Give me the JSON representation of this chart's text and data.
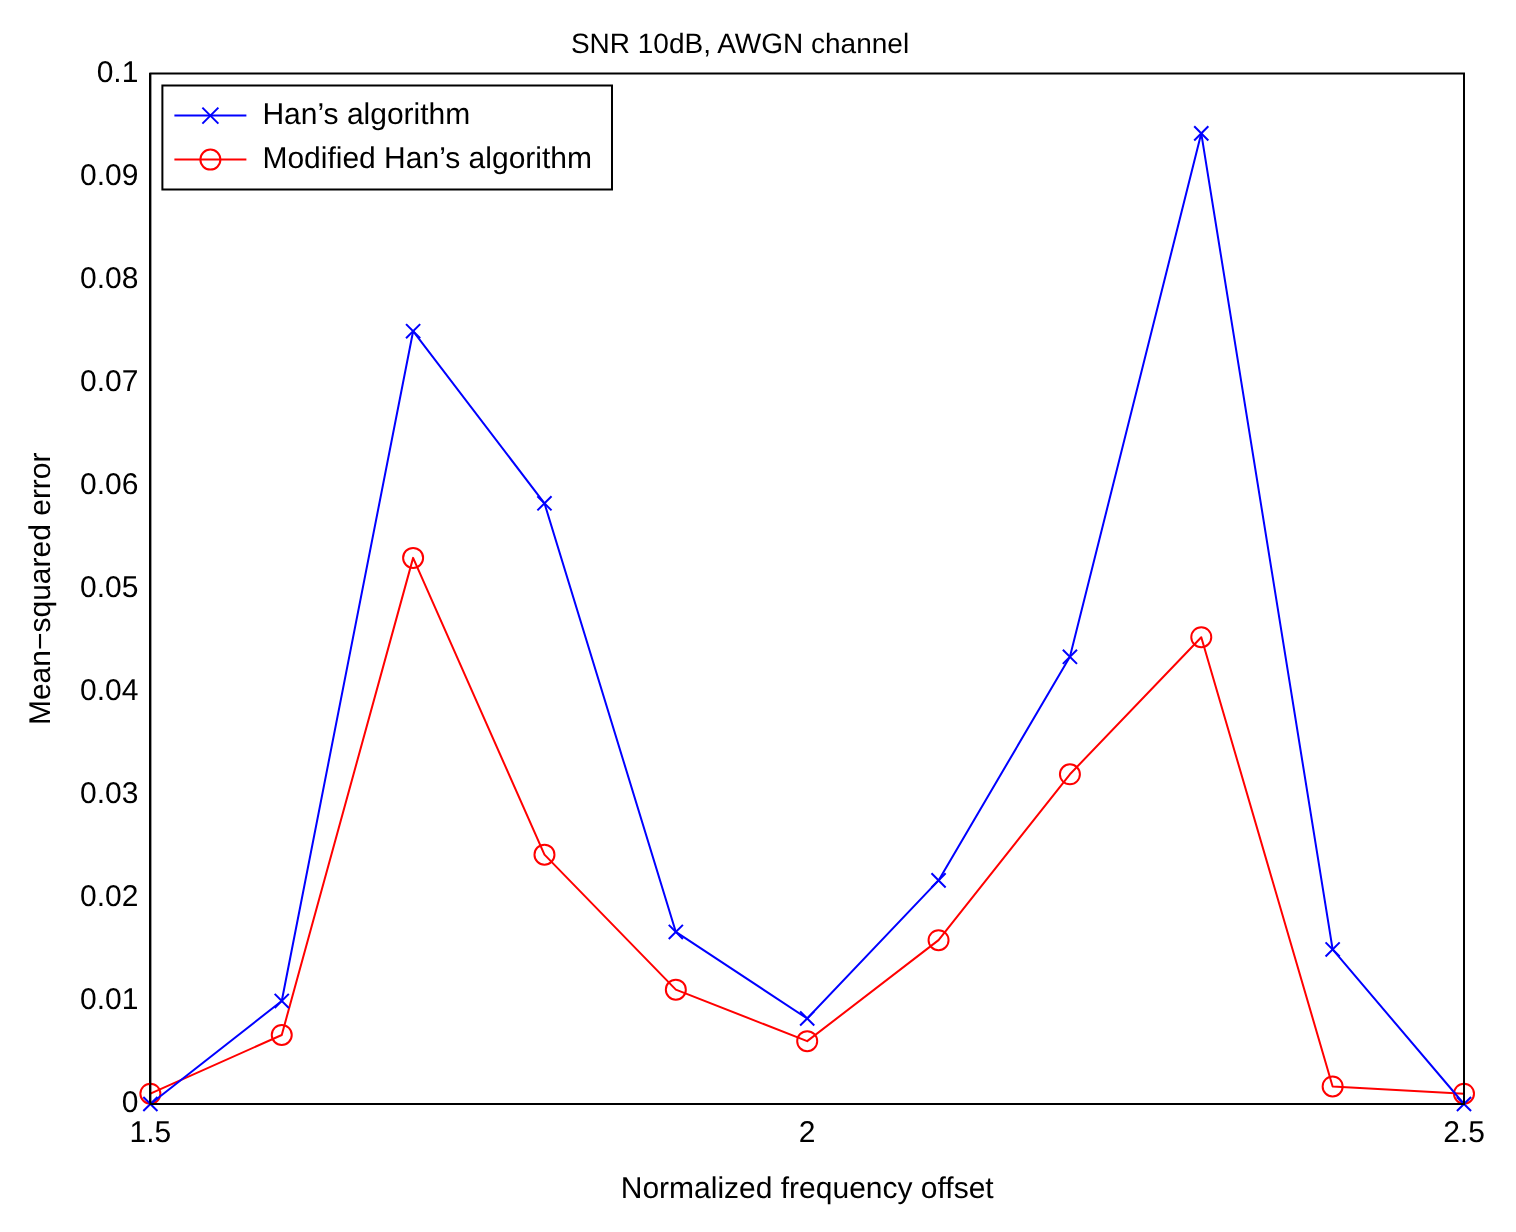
{
  "chart_data": {
    "type": "line",
    "title": "SNR 10dB, AWGN channel",
    "xlabel": "Normalized frequency offset",
    "ylabel": "Mean−squared error",
    "x": [
      1.5,
      1.6,
      1.7,
      1.8,
      1.9,
      2.0,
      2.1,
      2.2,
      2.3,
      2.4,
      2.5
    ],
    "series": [
      {
        "name": "Han’s algorithm",
        "color": "#0000ff",
        "marker": "cross",
        "values": [
          0,
          0.01,
          0.075,
          0.0583,
          0.0167,
          0.0083,
          0.0217,
          0.0434,
          0.0942,
          0.015,
          0
        ]
      },
      {
        "name": "Modified Han’s algorithm",
        "color": "#ff0000",
        "marker": "circle",
        "values": [
          0.001,
          0.0067,
          0.053,
          0.0242,
          0.0111,
          0.0061,
          0.0159,
          0.032,
          0.0453,
          0.0017,
          0.001
        ]
      }
    ],
    "xlim": [
      1.5,
      2.5
    ],
    "xticks": [
      1.5,
      2,
      2.5
    ],
    "ylim": [
      0,
      0.1
    ],
    "yticks": [
      0,
      0.01,
      0.02,
      0.03,
      0.04,
      0.05,
      0.06,
      0.07,
      0.08,
      0.09,
      0.1
    ],
    "grid": false,
    "legend": "top left",
    "line_style": "solid"
  }
}
